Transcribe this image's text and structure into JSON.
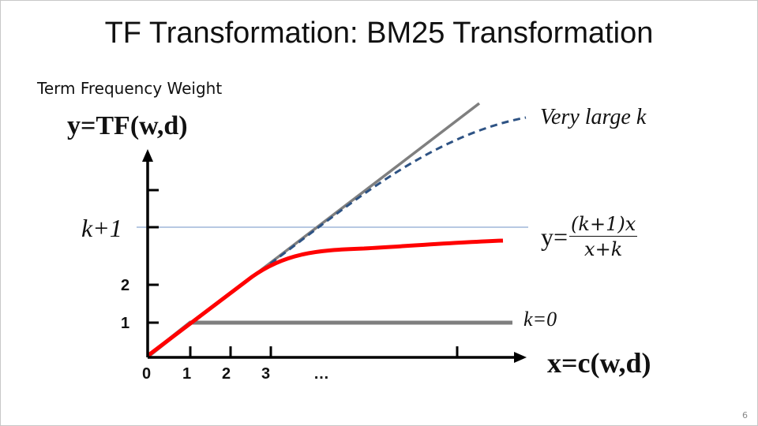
{
  "slide": {
    "title": "TF Transformation: BM25 Transformation",
    "caption": "Term Frequency Weight",
    "page_number": "6"
  },
  "axes": {
    "y_label": "y=TF(w,d)",
    "x_label": "x=c(w,d)",
    "x_ticks": [
      "0",
      "1",
      "2",
      "3",
      "…"
    ],
    "y_ticks": [
      "1",
      "2"
    ]
  },
  "annotations": {
    "very_large_k": "Very large k",
    "k_plus_1": "k+1",
    "k_zero": "k=0",
    "formula_lhs": "y=",
    "formula_num": "(k+1)x",
    "formula_den": "x+k"
  },
  "colors": {
    "linear": "#7f7f7f",
    "very_large_k": "#2e5384",
    "bm25": "#ff0000",
    "k_zero": "#7f7f7f",
    "k_plus_1_line": "#6f93c4",
    "axis": "#000000"
  }
}
